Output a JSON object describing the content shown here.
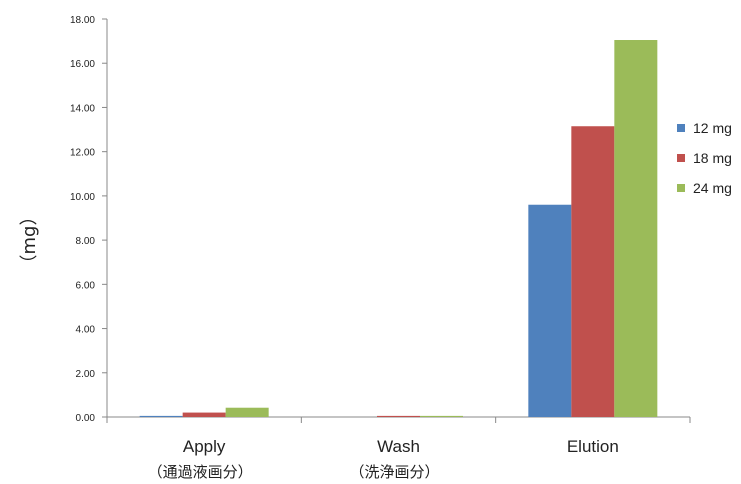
{
  "chart_data": {
    "type": "bar",
    "title": "",
    "xlabel": "",
    "ylabel": "（mg）",
    "ylim": [
      0,
      18
    ],
    "ytick_step": 2,
    "ytick_labels": [
      "0.00",
      "2.00",
      "4.00",
      "6.00",
      "8.00",
      "10.00",
      "12.00",
      "14.00",
      "16.00",
      "18.00"
    ],
    "categories": [
      "Apply",
      "Wash",
      "Elution"
    ],
    "category_sublabels": [
      "（通過液画分）",
      "（洗浄画分）",
      ""
    ],
    "series": [
      {
        "name": "12 mg",
        "color": "#4f81bd",
        "values": [
          0.05,
          0.0,
          9.6
        ]
      },
      {
        "name": "18 mg",
        "color": "#c0504d",
        "values": [
          0.2,
          0.05,
          13.15
        ]
      },
      {
        "name": "24 mg",
        "color": "#9bbb59",
        "values": [
          0.42,
          0.05,
          17.05
        ]
      }
    ],
    "grid": false,
    "legend_position": "right"
  }
}
